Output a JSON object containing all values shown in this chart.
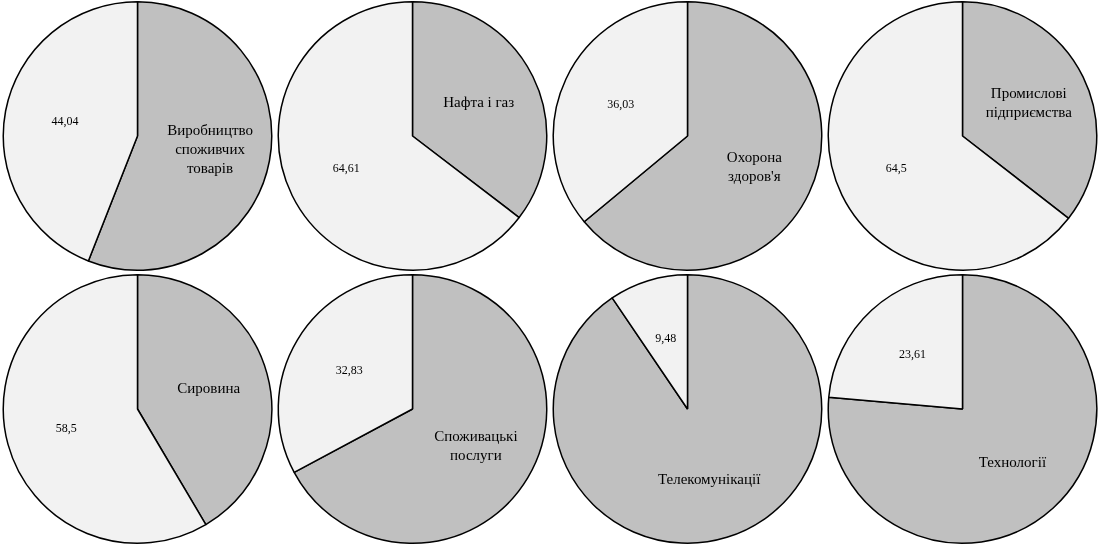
{
  "chart_data": [
    {
      "type": "pie",
      "categories": [
        "Виробництво споживчих товарів",
        null
      ],
      "values": [
        55.96,
        44.04
      ],
      "colors": [
        "#c0c0c0",
        "#f2f2f2"
      ],
      "value_labels": [
        null,
        "44,04"
      ]
    },
    {
      "type": "pie",
      "categories": [
        "Нафта і газ",
        null
      ],
      "values": [
        35.39,
        64.61
      ],
      "colors": [
        "#c0c0c0",
        "#f2f2f2"
      ],
      "value_labels": [
        null,
        "64,61"
      ]
    },
    {
      "type": "pie",
      "categories": [
        "Охорона здоров'я",
        null
      ],
      "values": [
        63.97,
        36.03
      ],
      "colors": [
        "#c0c0c0",
        "#f2f2f2"
      ],
      "value_labels": [
        null,
        "36,03"
      ]
    },
    {
      "type": "pie",
      "categories": [
        "Промислові підприємства",
        null
      ],
      "values": [
        35.5,
        64.5
      ],
      "colors": [
        "#c0c0c0",
        "#f2f2f2"
      ],
      "value_labels": [
        null,
        "64,5"
      ]
    },
    {
      "type": "pie",
      "categories": [
        "Сировина",
        null
      ],
      "values": [
        41.5,
        58.5
      ],
      "colors": [
        "#c0c0c0",
        "#f2f2f2"
      ],
      "value_labels": [
        null,
        "58,5"
      ]
    },
    {
      "type": "pie",
      "categories": [
        "Споживацькі послуги",
        null
      ],
      "values": [
        67.17,
        32.83
      ],
      "colors": [
        "#c0c0c0",
        "#f2f2f2"
      ],
      "value_labels": [
        null,
        "32,83"
      ]
    },
    {
      "type": "pie",
      "categories": [
        "Телекомунікації",
        null
      ],
      "values": [
        90.52,
        9.48
      ],
      "colors": [
        "#c0c0c0",
        "#f2f2f2"
      ],
      "value_labels": [
        null,
        "9,48"
      ]
    },
    {
      "type": "pie",
      "categories": [
        "Технології",
        null
      ],
      "values": [
        76.39,
        23.61
      ],
      "colors": [
        "#c0c0c0",
        "#f2f2f2"
      ],
      "value_labels": [
        null,
        "23,61"
      ]
    }
  ]
}
